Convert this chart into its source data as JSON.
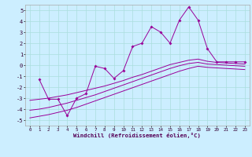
{
  "xlabel": "Windchill (Refroidissement éolien,°C)",
  "background_color": "#cceeff",
  "line_color": "#990099",
  "grid_color": "#aadddd",
  "xlim": [
    -0.5,
    23.5
  ],
  "ylim": [
    -5.5,
    5.5
  ],
  "xticks": [
    0,
    1,
    2,
    3,
    4,
    5,
    6,
    7,
    8,
    9,
    10,
    11,
    12,
    13,
    14,
    15,
    16,
    17,
    18,
    19,
    20,
    21,
    22,
    23
  ],
  "yticks": [
    -5,
    -4,
    -3,
    -2,
    -1,
    0,
    1,
    2,
    3,
    4,
    5
  ],
  "line1_x": [
    1,
    2,
    3,
    4,
    5,
    6,
    7,
    8,
    9,
    10,
    11,
    12,
    13,
    14,
    15,
    16,
    17,
    18,
    19,
    20,
    21,
    22,
    23
  ],
  "line1_y": [
    -1.3,
    -3.1,
    -3.1,
    -4.6,
    -3.0,
    -2.6,
    -0.1,
    -0.3,
    -1.2,
    -0.5,
    1.7,
    2.0,
    3.5,
    3.0,
    2.0,
    4.1,
    5.3,
    4.1,
    1.5,
    0.3,
    0.3,
    0.3,
    0.3
  ],
  "smooth1_x": [
    0,
    1,
    2,
    3,
    4,
    5,
    6,
    7,
    8,
    9,
    10,
    11,
    12,
    13,
    14,
    15,
    16,
    17,
    18,
    19,
    20,
    21,
    22,
    23
  ],
  "smooth1_y": [
    -3.2,
    -3.1,
    -3.0,
    -2.85,
    -2.7,
    -2.5,
    -2.3,
    -2.1,
    -1.9,
    -1.65,
    -1.4,
    -1.1,
    -0.85,
    -0.55,
    -0.25,
    0.05,
    0.25,
    0.45,
    0.55,
    0.35,
    0.25,
    0.2,
    0.15,
    0.1
  ],
  "smooth2_x": [
    0,
    1,
    2,
    3,
    4,
    5,
    6,
    7,
    8,
    9,
    10,
    11,
    12,
    13,
    14,
    15,
    16,
    17,
    18,
    19,
    20,
    21,
    22,
    23
  ],
  "smooth2_y": [
    -4.1,
    -4.0,
    -3.85,
    -3.65,
    -3.45,
    -3.2,
    -2.95,
    -2.7,
    -2.4,
    -2.1,
    -1.8,
    -1.5,
    -1.2,
    -0.9,
    -0.6,
    -0.3,
    -0.05,
    0.15,
    0.25,
    0.1,
    0.05,
    0.0,
    -0.05,
    -0.1
  ],
  "smooth3_x": [
    0,
    1,
    2,
    3,
    4,
    5,
    6,
    7,
    8,
    9,
    10,
    11,
    12,
    13,
    14,
    15,
    16,
    17,
    18,
    19,
    20,
    21,
    22,
    23
  ],
  "smooth3_y": [
    -4.8,
    -4.65,
    -4.5,
    -4.3,
    -4.1,
    -3.85,
    -3.55,
    -3.25,
    -2.95,
    -2.65,
    -2.35,
    -2.05,
    -1.75,
    -1.45,
    -1.15,
    -0.85,
    -0.55,
    -0.3,
    -0.1,
    -0.2,
    -0.25,
    -0.3,
    -0.35,
    -0.4
  ]
}
